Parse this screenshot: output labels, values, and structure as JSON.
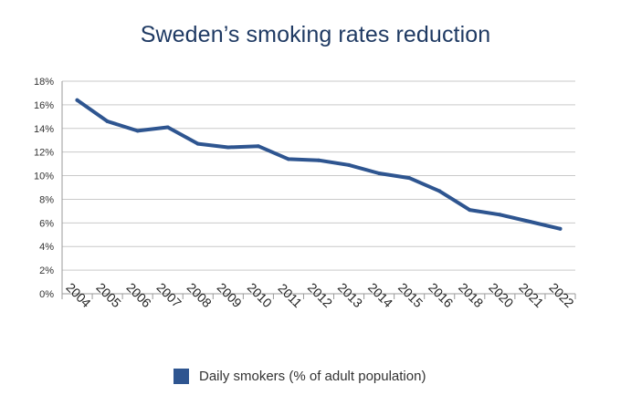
{
  "chart_data": {
    "type": "line",
    "title": "Sweden’s smoking rates reduction",
    "xlabel": "",
    "ylabel": "",
    "categories": [
      "2004",
      "2005",
      "2006",
      "2007",
      "2008",
      "2009",
      "2010",
      "2011",
      "2012",
      "2013",
      "2014",
      "2015",
      "2016",
      "2018",
      "2020",
      "2021",
      "2022"
    ],
    "y_ticks": [
      "0%",
      "2%",
      "4%",
      "6%",
      "8%",
      "10%",
      "12%",
      "14%",
      "16%",
      "18%"
    ],
    "ylim": [
      0,
      18
    ],
    "grid": true,
    "legend_position": "bottom",
    "series": [
      {
        "name": "Daily smokers (% of adult population)",
        "color": "#2e5590",
        "values": [
          16.4,
          14.6,
          13.8,
          14.1,
          12.7,
          12.4,
          12.5,
          11.4,
          11.3,
          10.9,
          10.2,
          9.8,
          8.7,
          7.1,
          6.7,
          6.1,
          5.5
        ]
      }
    ]
  }
}
